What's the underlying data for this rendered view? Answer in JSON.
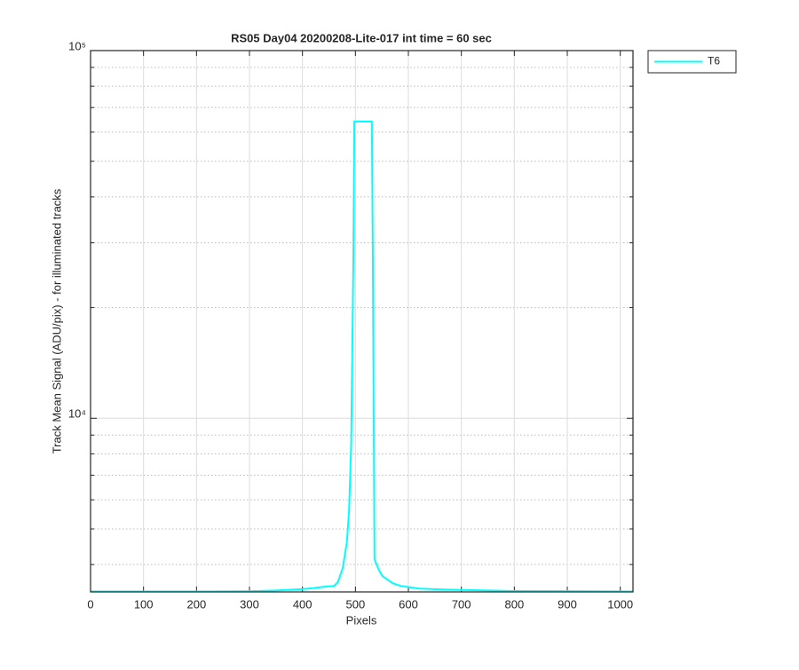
{
  "chart_data": {
    "type": "line",
    "title": "RS05 Day04 20200208-Lite-017 int time = 60 sec",
    "xlabel": "Pixels",
    "ylabel": "Track Mean Signal (ADU/pix) - for illuminated tracks",
    "x": [
      0,
      100,
      200,
      300,
      350,
      400,
      420,
      440,
      460,
      467,
      476,
      484,
      488,
      492,
      496,
      498,
      531,
      533,
      536,
      545,
      551,
      570,
      585,
      620,
      669,
      800,
      1024
    ],
    "series": [
      {
        "name": "T6",
        "color": "#00ffff",
        "values": [
          3380,
          3380,
          3380,
          3385,
          3400,
          3430,
          3450,
          3480,
          3500,
          3590,
          3910,
          4615,
          5610,
          8510,
          25900,
          64100,
          64100,
          25900,
          4130,
          3850,
          3720,
          3560,
          3500,
          3440,
          3420,
          3390,
          3380
        ]
      }
    ],
    "xlim": [
      0,
      1024
    ],
    "xticks": [
      0,
      100,
      200,
      300,
      400,
      500,
      600,
      700,
      800,
      900,
      1000
    ],
    "ylim": [
      3370,
      100000
    ],
    "ylog": true,
    "yticks": [
      {
        "value": 10000,
        "label": "10⁴"
      },
      {
        "value": 100000,
        "label": "10⁵"
      }
    ],
    "yminorticks": [
      4000,
      5000,
      6000,
      7000,
      8000,
      9000,
      20000,
      30000,
      40000,
      50000,
      60000,
      70000,
      80000,
      90000
    ],
    "grid": true,
    "legend": "outside-right"
  }
}
